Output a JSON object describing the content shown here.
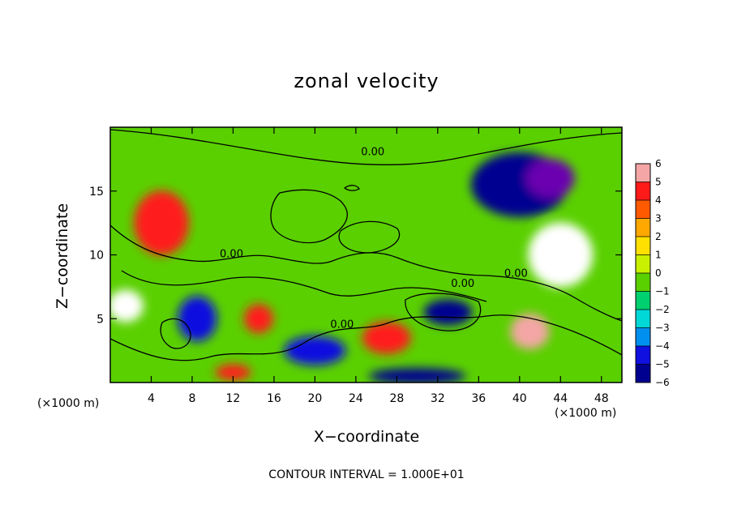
{
  "chart_data": {
    "type": "heatmap",
    "title": "zonal velocity",
    "xlabel": "X−coordinate",
    "ylabel": "Z−coordinate",
    "x_scale_label": "(×1000 m)",
    "xlim": [
      0,
      50
    ],
    "ylim": [
      0,
      20
    ],
    "x_ticks": [
      4,
      8,
      12,
      16,
      20,
      24,
      28,
      32,
      36,
      40,
      44,
      48
    ],
    "y_ticks": [
      5,
      10,
      15
    ],
    "colorbar": {
      "ticks": [
        6,
        5,
        4,
        3,
        2,
        1,
        0,
        -1,
        -2,
        -3,
        -4,
        -5,
        -6
      ],
      "tick_labels": [
        "6",
        "5",
        "4",
        "3",
        "2",
        "1",
        "0",
        "−1",
        "−2",
        "−3",
        "−4",
        "−5",
        "−6"
      ],
      "colors": [
        "#f4a6a6",
        "#ff1a1a",
        "#ff5a00",
        "#ffa800",
        "#ffe000",
        "#c8f000",
        "#5ad000",
        "#00d070",
        "#00d8d8",
        "#0090f0",
        "#1010e0",
        "#000090",
        "#6a00b0"
      ]
    },
    "contour_labels": [
      "0.00",
      "0.00",
      "0.00",
      "0.00",
      "0.00"
    ],
    "contour_interval_text": "CONTOUR INTERVAL = 1.000E+01",
    "features": [
      {
        "x": 5,
        "z": 12.5,
        "value": 5
      },
      {
        "x": 14.5,
        "z": 5,
        "value": 5
      },
      {
        "x": 40,
        "z": 15.5,
        "value": -5
      },
      {
        "x": 43,
        "z": 16,
        "value": -6
      },
      {
        "x": 44,
        "z": 10,
        "value": -7
      },
      {
        "x": 27,
        "z": 3.5,
        "value": 5
      },
      {
        "x": 41,
        "z": 4,
        "value": 6
      },
      {
        "x": 1.5,
        "z": 6,
        "value": 7
      },
      {
        "x": 8.5,
        "z": 5,
        "value": -4
      },
      {
        "x": 20,
        "z": 2.5,
        "value": -4
      },
      {
        "x": 33,
        "z": 5.5,
        "value": -5
      },
      {
        "x": 30,
        "z": 0.5,
        "value": -5
      },
      {
        "x": 12,
        "z": 0.8,
        "value": 5
      },
      {
        "x": 18,
        "z": 14,
        "value": 0
      }
    ]
  }
}
